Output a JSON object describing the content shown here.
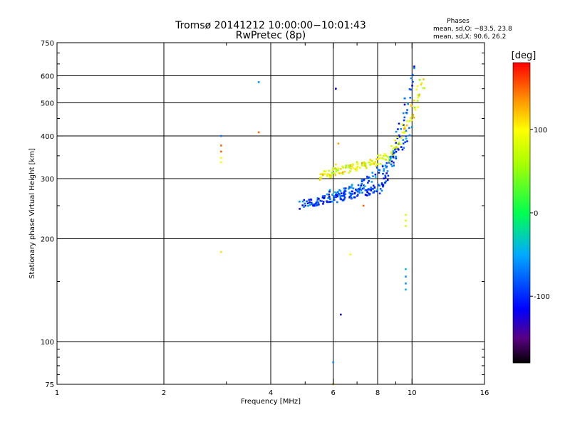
{
  "chart_data": {
    "type": "scatter",
    "title": "Tromsø 20141212 10:00:00−10:01:43",
    "subtitle": "RwPretec (8p)",
    "phase_info": {
      "heading": "Phases",
      "line1": "mean, sd,O: −83.5, 23.8",
      "line2": "mean, sd,X:  90.6, 26.2"
    },
    "xlabel": "Frequency [MHz]",
    "ylabel": "Stationary phase Virtual Height [km]",
    "xscale": "log2",
    "yscale": "log",
    "xlim": [
      1,
      16
    ],
    "ylim": [
      75,
      750
    ],
    "xticks": [
      1,
      2,
      4,
      6,
      8,
      10,
      16
    ],
    "xminor": [
      3,
      5,
      7,
      9
    ],
    "xgrid": [
      2,
      4,
      6,
      8,
      10
    ],
    "yticks": [
      75,
      100,
      200,
      300,
      400,
      500,
      600,
      750
    ],
    "ygrid": [
      100,
      200,
      300,
      400,
      500,
      600
    ],
    "colorbar": {
      "label": "[deg]",
      "range": [
        -180,
        180
      ],
      "ticks": [
        100,
        0,
        -100
      ]
    },
    "points": [
      [
        2.9,
        400,
        -70
      ],
      [
        2.9,
        375,
        150
      ],
      [
        2.9,
        360,
        150
      ],
      [
        2.9,
        345,
        100
      ],
      [
        2.9,
        335,
        100
      ],
      [
        2.9,
        183,
        110
      ],
      [
        3.7,
        575,
        -60
      ],
      [
        3.7,
        410,
        150
      ],
      [
        6.1,
        550,
        -120
      ],
      [
        6.0,
        87,
        -60
      ],
      [
        6.0,
        75,
        130
      ],
      [
        6.2,
        380,
        130
      ],
      [
        6.1,
        330,
        110
      ],
      [
        6.3,
        120,
        -130
      ],
      [
        6.7,
        180,
        100
      ],
      [
        7.3,
        250,
        150
      ],
      [
        9.6,
        235,
        80
      ],
      [
        9.6,
        226,
        80
      ],
      [
        9.6,
        218,
        80
      ],
      [
        9.6,
        163,
        -40
      ],
      [
        9.6,
        155,
        -60
      ],
      [
        9.6,
        148,
        -60
      ],
      [
        9.6,
        142,
        -50
      ]
    ],
    "o_trace": {
      "start": [
        4.9,
        252
      ],
      "end": [
        10.0,
        630
      ],
      "count": 200,
      "phase": -90,
      "spread": 35
    },
    "x_trace": {
      "start": [
        5.5,
        305
      ],
      "end": [
        10.8,
        590
      ],
      "count": 170,
      "phase": 90,
      "spread": 40
    }
  }
}
